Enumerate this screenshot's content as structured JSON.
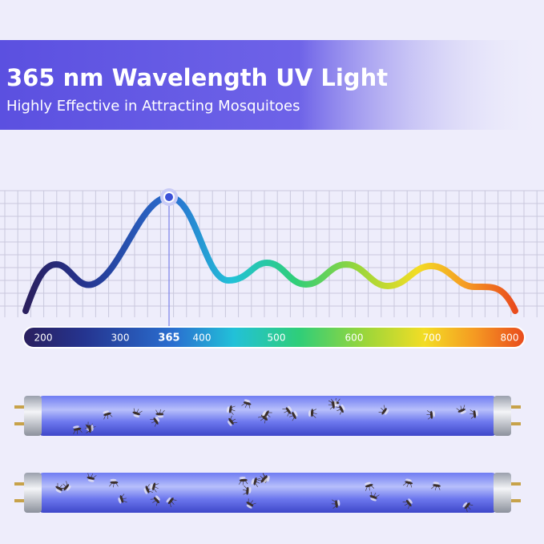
{
  "header": {
    "title": "365 nm Wavelength UV Light",
    "subtitle": "Highly Effective in Attracting Mosquitoes"
  },
  "spectrum": {
    "labels": [
      "200",
      "300",
      "365",
      "400",
      "500",
      "600",
      "700",
      "800"
    ],
    "highlight": "365"
  }
}
